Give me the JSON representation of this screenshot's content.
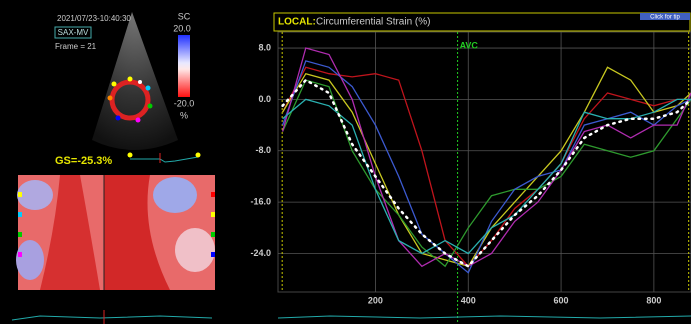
{
  "echo": {
    "timestamp": "2021/07/23-10:40:30",
    "view": "SAX-MV",
    "frame": "Frame = 21",
    "scale_name": "SC",
    "scale_max": "20.0",
    "scale_min": "-20.0",
    "scale_unit": "%",
    "global_strain": "GS=-25.3%"
  },
  "header": {
    "mode": "LOCAL:",
    "measure": "Circumferential Strain (%)",
    "tip": "Click for tip"
  },
  "chart_data": {
    "type": "line",
    "x": [
      0,
      50,
      100,
      150,
      200,
      250,
      300,
      350,
      400,
      450,
      500,
      550,
      600,
      650,
      700,
      750,
      800,
      850,
      880
    ],
    "series": [
      {
        "color": "#c0141c",
        "values": [
          -2,
          5,
          4,
          3.5,
          4,
          3,
          -8,
          -22,
          -26,
          -22,
          -17,
          -14,
          -10,
          -3,
          1,
          0,
          -1,
          0,
          0
        ]
      },
      {
        "color": "#c8c820",
        "values": [
          -2,
          4,
          3,
          -2,
          -10,
          -18,
          -24,
          -25,
          -26,
          -20,
          -16,
          -12,
          -8,
          -2,
          5,
          3,
          -2,
          -1,
          1
        ]
      },
      {
        "color": "#2e9a2e",
        "values": [
          -5,
          3,
          2,
          -8,
          -14,
          -18,
          -23,
          -26,
          -20,
          -15,
          -14,
          -14,
          -12,
          -7,
          -8,
          -9,
          -8,
          -3,
          0
        ]
      },
      {
        "color": "#3c5ad0",
        "values": [
          -4,
          6,
          5,
          2,
          -4,
          -12,
          -21,
          -24,
          -27,
          -19,
          -14,
          -12,
          -11,
          -4,
          -3,
          -2,
          -4,
          -1,
          0
        ]
      },
      {
        "color": "#b02cb0",
        "values": [
          -5,
          8,
          7,
          0,
          -12,
          -22,
          -26,
          -24,
          -26,
          -24,
          -19,
          -16,
          -11,
          -5,
          -4,
          -6,
          -4,
          -4,
          1
        ]
      },
      {
        "color": "#2ab0b0",
        "values": [
          -3,
          0,
          -1,
          -4,
          -14,
          -22,
          -24,
          -22,
          -24,
          -20,
          -18,
          -14,
          -10,
          -2,
          -3,
          -3,
          -2,
          0,
          0
        ]
      },
      {
        "color": "#ffffff",
        "dotted": true,
        "values": [
          -1,
          3,
          1,
          -7,
          -12,
          -17,
          -21,
          -24,
          -26,
          -22,
          -18,
          -15,
          -11,
          -6,
          -4,
          -3,
          -3,
          -2,
          0
        ]
      }
    ],
    "xlim": [
      -10,
      880
    ],
    "ylim": [
      -30,
      10.5
    ],
    "xticks": [
      200,
      400,
      600,
      800
    ],
    "yticks": [
      {
        "value": 8,
        "label": "8.0"
      },
      {
        "value": 0,
        "label": "0.0"
      },
      {
        "value": -8,
        "label": "-8.0"
      },
      {
        "value": -16,
        "label": "-16.0"
      },
      {
        "value": -24,
        "label": "-24.0"
      }
    ],
    "grid": true,
    "event_lines": [
      -1,
      875
    ],
    "annotations": [
      {
        "label": "AVC",
        "x": 377
      }
    ]
  }
}
